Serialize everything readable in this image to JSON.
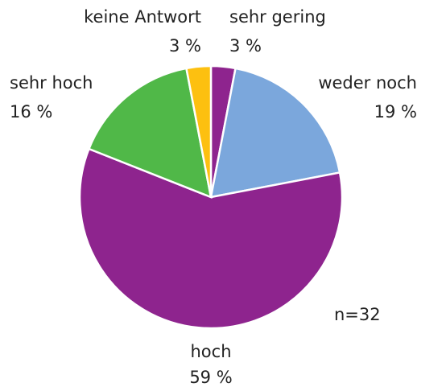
{
  "chart_data": {
    "type": "pie",
    "categories": [
      "sehr gering",
      "weder noch",
      "hoch",
      "sehr hoch",
      "keine Antwort"
    ],
    "values": [
      3,
      19,
      59,
      16,
      3
    ],
    "value_labels": [
      "3 %",
      "19 %",
      "59 %",
      "16 %",
      "3 %"
    ],
    "colors": [
      "#8e248e",
      "#7ba7dc",
      "#8e248e",
      "#50b848",
      "#fdc010"
    ],
    "annotations": [
      "n=32"
    ]
  }
}
